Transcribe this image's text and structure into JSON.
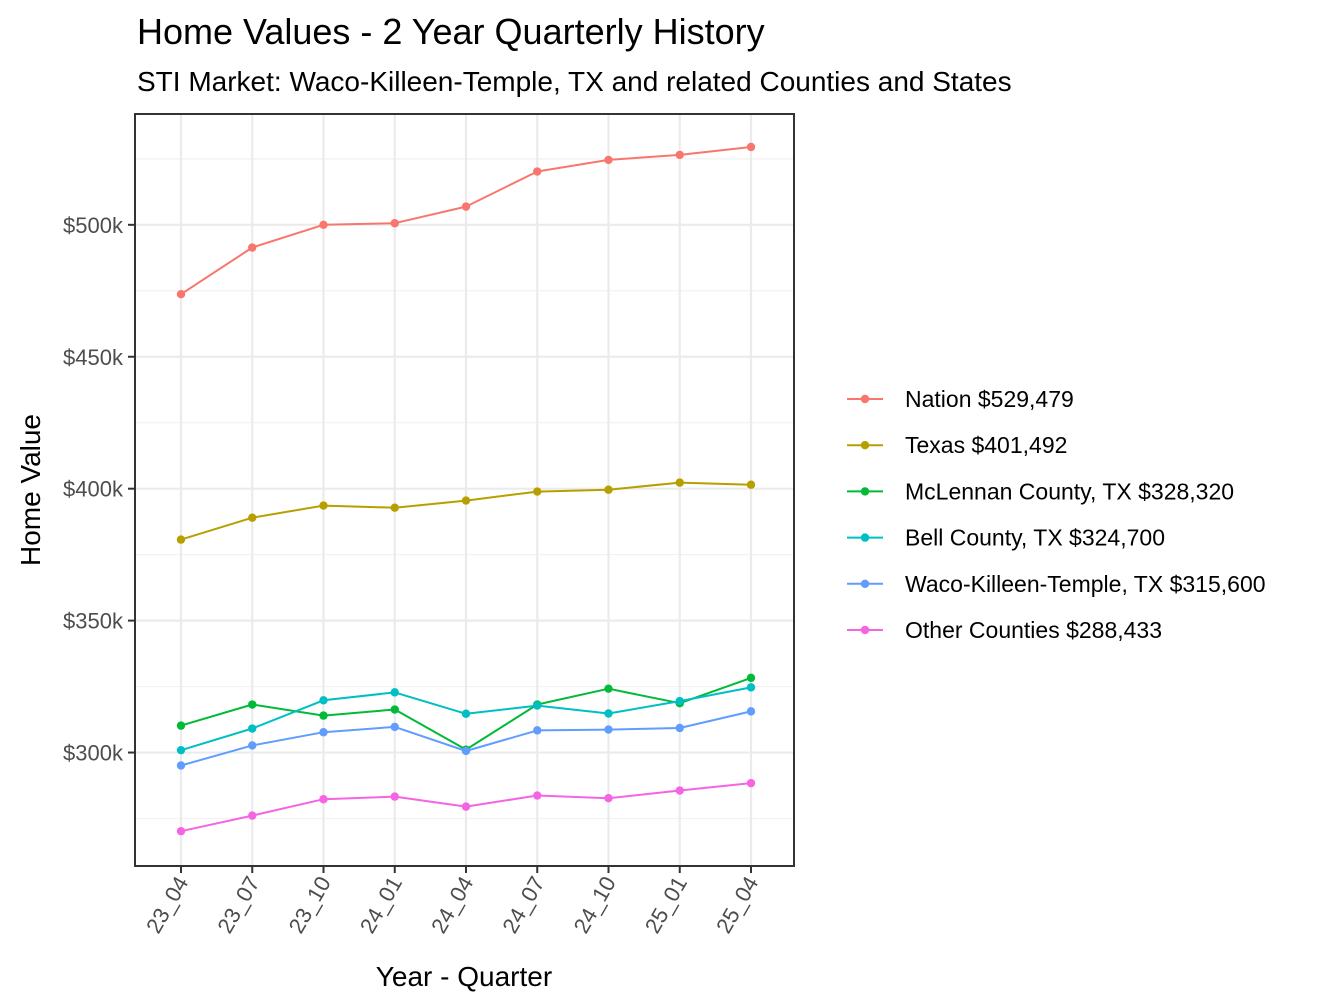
{
  "chart_data": {
    "type": "line",
    "title": "Home Values - 2 Year Quarterly History",
    "subtitle": "STI Market: Waco-Killeen-Temple, TX and related Counties and States",
    "xlabel": "Year - Quarter",
    "ylabel": "Home Value",
    "categories": [
      "23_04",
      "23_07",
      "23_10",
      "24_01",
      "24_04",
      "24_07",
      "24_10",
      "25_01",
      "25_04"
    ],
    "ylim": [
      257,
      542
    ],
    "y_unit": "thousands USD",
    "y_ticks": [
      300,
      350,
      400,
      450,
      500
    ],
    "y_tick_labels": [
      "$300k",
      "$350k",
      "$400k",
      "$450k",
      "$500k"
    ],
    "y_minor_ticks": [
      275,
      325,
      375,
      425,
      475,
      525
    ],
    "grid": true,
    "legend_position": "right",
    "series": [
      {
        "name": "Nation $529,479",
        "color": "#F8766D",
        "values": [
          473.7,
          491.4,
          500.0,
          500.6,
          506.9,
          520.2,
          524.6,
          526.5,
          529.5
        ]
      },
      {
        "name": "Texas $401,492",
        "color": "#B79F00",
        "values": [
          380.7,
          389.0,
          393.6,
          392.8,
          395.5,
          398.9,
          399.6,
          402.3,
          401.5
        ]
      },
      {
        "name": "McLennan County, TX $328,320",
        "color": "#00BA38",
        "values": [
          310.2,
          318.2,
          314.0,
          316.3,
          301.1,
          318.2,
          324.2,
          318.7,
          328.3
        ]
      },
      {
        "name": "Bell County, TX $324,700",
        "color": "#00BFC4",
        "values": [
          300.9,
          309.1,
          319.8,
          322.8,
          314.7,
          317.8,
          314.8,
          319.5,
          324.7
        ]
      },
      {
        "name": "Waco-Killeen-Temple, TX $315,600",
        "color": "#619CFF",
        "values": [
          295.1,
          302.7,
          307.7,
          309.7,
          300.6,
          308.4,
          308.7,
          309.3,
          315.6
        ]
      },
      {
        "name": "Other Counties $288,433",
        "color": "#F564E3",
        "values": [
          270.2,
          276.1,
          282.3,
          283.3,
          279.5,
          283.7,
          282.7,
          285.6,
          288.4
        ]
      }
    ]
  }
}
